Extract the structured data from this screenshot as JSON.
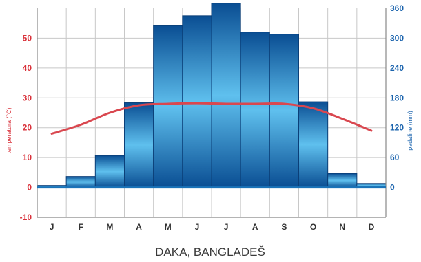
{
  "colors": {
    "temperature": "#d9474f",
    "precipitation_dark": "#0a4e93",
    "precipitation_light": "#5fc0ee",
    "left_axis": "#d9313a",
    "right_axis": "#1a63ad"
  },
  "chart_data": {
    "type": "bar",
    "title": "DAKA, BANGLADEŠ",
    "categories": [
      "J",
      "F",
      "M",
      "A",
      "M",
      "J",
      "J",
      "A",
      "S",
      "O",
      "N",
      "D"
    ],
    "series": [
      {
        "type": "bar",
        "axis": "right",
        "values": [
          4,
          22,
          64,
          170,
          325,
          345,
          370,
          312,
          308,
          172,
          28,
          8
        ]
      },
      {
        "type": "line",
        "axis": "left",
        "values": [
          18,
          21,
          25,
          27.5,
          28,
          28.2,
          28,
          28,
          28,
          26.5,
          23,
          19
        ]
      }
    ],
    "ylabel": "temperatura (°C)",
    "y2label": "padaline (mm)",
    "ylim": [
      -10,
      60
    ],
    "y2lim": [
      -60,
      360
    ],
    "yticks": [
      "-10",
      "0",
      "10",
      "20",
      "30",
      "40",
      "50"
    ],
    "y2ticks": [
      "0",
      "60",
      "120",
      "180",
      "240",
      "300",
      "360"
    ],
    "grid": true
  }
}
